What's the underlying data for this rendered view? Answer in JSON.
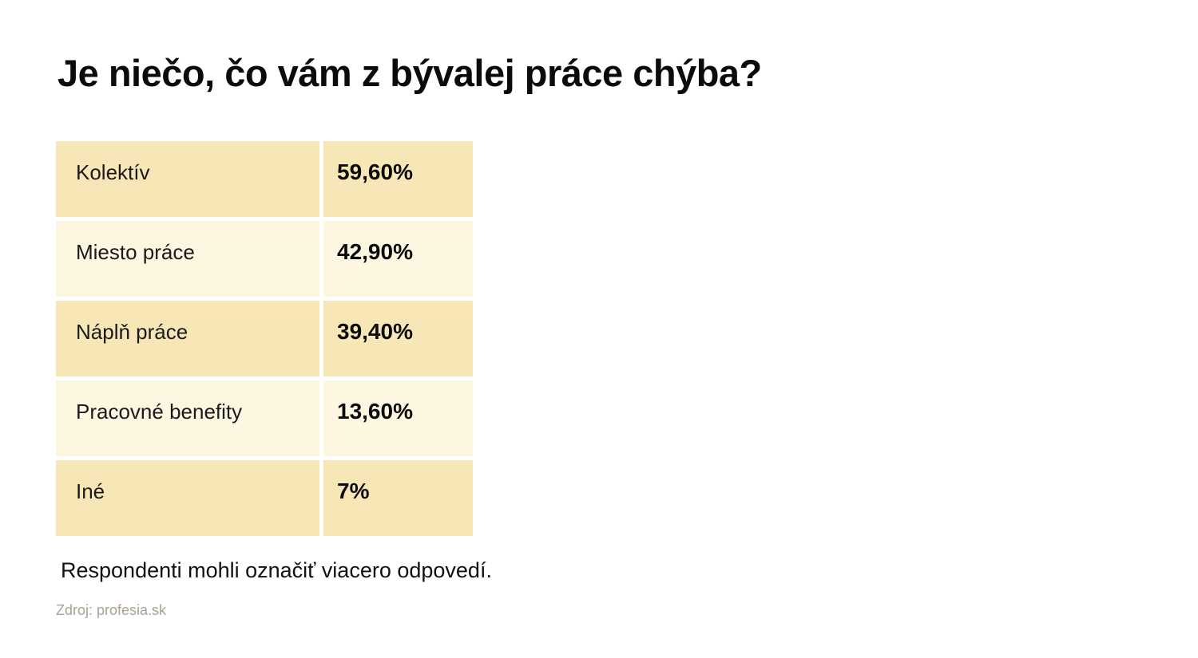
{
  "title": "Je niečo, čo vám z bývalej práce chýba?",
  "table": {
    "rows": [
      {
        "label": "Kolektív",
        "value": "59,60%"
      },
      {
        "label": "Miesto práce",
        "value": "42,90%"
      },
      {
        "label": "Náplň práce",
        "value": "39,40%"
      },
      {
        "label": "Pracovné benefity",
        "value": "13,60%"
      },
      {
        "label": "Iné",
        "value": "7%"
      }
    ]
  },
  "footnote": "Respondenti mohli označiť viacero odpovedí.",
  "source": "Zdroj: profesia.sk",
  "colors": {
    "row_dark": "#F8E7B6",
    "row_light": "#FDF6E1",
    "source_text": "#A9A295",
    "background": "#FFFFFF",
    "text": "#0B0B0B"
  },
  "chart_data": {
    "type": "table",
    "title": "Je niečo, čo vám z bývalej práce chýba?",
    "categories": [
      "Kolektív",
      "Miesto práce",
      "Náplň práce",
      "Pracovné benefity",
      "Iné"
    ],
    "values": [
      59.6,
      42.9,
      39.4,
      13.6,
      7
    ],
    "value_labels": [
      "59,60%",
      "42,90%",
      "39,40%",
      "13,60%",
      "7%"
    ],
    "unit": "%",
    "note": "Respondenti mohli označiť viacero odpovedí.",
    "source": "Zdroj: profesia.sk",
    "legend_position": "none",
    "grid": false
  }
}
